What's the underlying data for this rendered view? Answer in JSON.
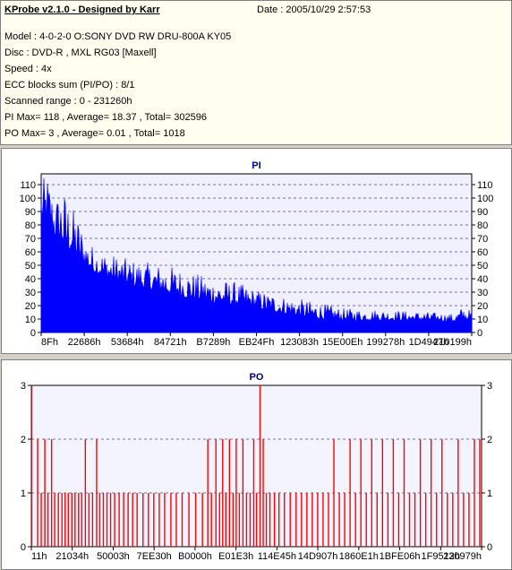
{
  "header": {
    "title": "KProbe v2.1.0 - Designed by Karr",
    "date": "Date : 2005/10/29 2:57:53",
    "lines": [
      "Model : 4-0-2-0 O:SONY    DVD RW DRU-800A  KY05",
      "Disc : DVD-R , MXL RG03 [Maxell]",
      "Speed : 4x",
      "ECC blocks sum (PI/PO) : 8/1",
      "Scanned range : 0 - 231260h",
      "PI Max= 118 , Average= 18.37 , Total= 302596",
      "PO Max= 3 , Average= 0.01 , Total= 1018"
    ]
  },
  "colors": {
    "pi": "#0000ff",
    "po": "#ff0000",
    "plot_bg_pi": "#f0f0ff",
    "plot_bg_po": "#f4f4ff",
    "grid": "#7070a0"
  },
  "chart_data": [
    {
      "type": "area",
      "title": "PI",
      "ylim": [
        0,
        118
      ],
      "yticks": [
        0,
        10,
        20,
        30,
        40,
        50,
        60,
        70,
        80,
        90,
        100,
        110
      ],
      "x_tick_labels": [
        "8Fh",
        "22686h",
        "53684h",
        "84721h",
        "B7289h",
        "EB24Fh",
        "123083h",
        "15E00Eh",
        "199278h",
        "1D4947h",
        "210199h"
      ],
      "grid": "dashed horizontal",
      "x_range_hex": [
        "0h",
        "231260h"
      ],
      "envelope": [
        {
          "x": 0.0,
          "max": 113,
          "base": 80
        },
        {
          "x": 0.015,
          "max": 118,
          "base": 82
        },
        {
          "x": 0.03,
          "max": 100,
          "base": 72
        },
        {
          "x": 0.05,
          "max": 108,
          "base": 65
        },
        {
          "x": 0.07,
          "max": 95,
          "base": 60
        },
        {
          "x": 0.09,
          "max": 85,
          "base": 52
        },
        {
          "x": 0.1,
          "max": 72,
          "base": 50
        },
        {
          "x": 0.12,
          "max": 65,
          "base": 45
        },
        {
          "x": 0.15,
          "max": 60,
          "base": 40
        },
        {
          "x": 0.2,
          "max": 55,
          "base": 35
        },
        {
          "x": 0.25,
          "max": 52,
          "base": 32
        },
        {
          "x": 0.3,
          "max": 50,
          "base": 28
        },
        {
          "x": 0.35,
          "max": 45,
          "base": 25
        },
        {
          "x": 0.4,
          "max": 40,
          "base": 22
        },
        {
          "x": 0.45,
          "max": 38,
          "base": 20
        },
        {
          "x": 0.5,
          "max": 32,
          "base": 18
        },
        {
          "x": 0.55,
          "max": 28,
          "base": 15
        },
        {
          "x": 0.6,
          "max": 25,
          "base": 12
        },
        {
          "x": 0.65,
          "max": 22,
          "base": 10
        },
        {
          "x": 0.7,
          "max": 18,
          "base": 9
        },
        {
          "x": 0.8,
          "max": 17,
          "base": 9
        },
        {
          "x": 0.9,
          "max": 15,
          "base": 9
        },
        {
          "x": 0.96,
          "max": 14,
          "base": 8
        },
        {
          "x": 0.98,
          "max": 20,
          "base": 9
        },
        {
          "x": 1.0,
          "max": 16,
          "base": 9
        }
      ]
    },
    {
      "type": "bar",
      "title": "PO",
      "ylim": [
        0,
        3
      ],
      "yticks": [
        0,
        1,
        2,
        3
      ],
      "x_tick_labels": [
        "11h",
        "21034h",
        "50003h",
        "7EE30h",
        "B0000h",
        "E01E3h",
        "114E45h",
        "14D907h",
        "1860E1h",
        "1BFE06h",
        "1F9512h",
        "230979h"
      ],
      "grid": "dashed horizontal",
      "spikes": [
        {
          "x": 0.001,
          "y": 3
        },
        {
          "x": 0.014,
          "y": 2
        },
        {
          "x": 0.022,
          "y": 1
        },
        {
          "x": 0.03,
          "y": 2
        },
        {
          "x": 0.037,
          "y": 1
        },
        {
          "x": 0.045,
          "y": 2
        },
        {
          "x": 0.052,
          "y": 1
        },
        {
          "x": 0.06,
          "y": 1
        },
        {
          "x": 0.068,
          "y": 1
        },
        {
          "x": 0.075,
          "y": 1
        },
        {
          "x": 0.082,
          "y": 1
        },
        {
          "x": 0.09,
          "y": 1
        },
        {
          "x": 0.097,
          "y": 1
        },
        {
          "x": 0.105,
          "y": 1
        },
        {
          "x": 0.112,
          "y": 1
        },
        {
          "x": 0.12,
          "y": 2
        },
        {
          "x": 0.128,
          "y": 1
        },
        {
          "x": 0.136,
          "y": 1
        },
        {
          "x": 0.145,
          "y": 2
        },
        {
          "x": 0.152,
          "y": 1
        },
        {
          "x": 0.16,
          "y": 1
        },
        {
          "x": 0.168,
          "y": 1
        },
        {
          "x": 0.176,
          "y": 1
        },
        {
          "x": 0.185,
          "y": 1
        },
        {
          "x": 0.195,
          "y": 1
        },
        {
          "x": 0.205,
          "y": 1
        },
        {
          "x": 0.215,
          "y": 1
        },
        {
          "x": 0.225,
          "y": 1
        },
        {
          "x": 0.235,
          "y": 1
        },
        {
          "x": 0.248,
          "y": 1
        },
        {
          "x": 0.26,
          "y": 1
        },
        {
          "x": 0.272,
          "y": 1
        },
        {
          "x": 0.284,
          "y": 1
        },
        {
          "x": 0.296,
          "y": 1
        },
        {
          "x": 0.31,
          "y": 1
        },
        {
          "x": 0.322,
          "y": 1
        },
        {
          "x": 0.335,
          "y": 1
        },
        {
          "x": 0.35,
          "y": 1
        },
        {
          "x": 0.365,
          "y": 1
        },
        {
          "x": 0.38,
          "y": 1
        },
        {
          "x": 0.392,
          "y": 2
        },
        {
          "x": 0.4,
          "y": 1
        },
        {
          "x": 0.41,
          "y": 2
        },
        {
          "x": 0.418,
          "y": 1
        },
        {
          "x": 0.425,
          "y": 2
        },
        {
          "x": 0.432,
          "y": 1
        },
        {
          "x": 0.44,
          "y": 2
        },
        {
          "x": 0.448,
          "y": 1
        },
        {
          "x": 0.455,
          "y": 2
        },
        {
          "x": 0.462,
          "y": 1
        },
        {
          "x": 0.47,
          "y": 2
        },
        {
          "x": 0.478,
          "y": 1
        },
        {
          "x": 0.486,
          "y": 1
        },
        {
          "x": 0.494,
          "y": 2
        },
        {
          "x": 0.5,
          "y": 1
        },
        {
          "x": 0.508,
          "y": 3
        },
        {
          "x": 0.515,
          "y": 2
        },
        {
          "x": 0.522,
          "y": 1
        },
        {
          "x": 0.53,
          "y": 1
        },
        {
          "x": 0.54,
          "y": 1
        },
        {
          "x": 0.55,
          "y": 1
        },
        {
          "x": 0.562,
          "y": 1
        },
        {
          "x": 0.575,
          "y": 1
        },
        {
          "x": 0.588,
          "y": 1
        },
        {
          "x": 0.6,
          "y": 1
        },
        {
          "x": 0.612,
          "y": 1
        },
        {
          "x": 0.624,
          "y": 1
        },
        {
          "x": 0.636,
          "y": 1
        },
        {
          "x": 0.648,
          "y": 1
        },
        {
          "x": 0.66,
          "y": 1
        },
        {
          "x": 0.672,
          "y": 2
        },
        {
          "x": 0.684,
          "y": 1
        },
        {
          "x": 0.696,
          "y": 1
        },
        {
          "x": 0.708,
          "y": 2
        },
        {
          "x": 0.72,
          "y": 1
        },
        {
          "x": 0.732,
          "y": 2
        },
        {
          "x": 0.744,
          "y": 1
        },
        {
          "x": 0.756,
          "y": 2
        },
        {
          "x": 0.768,
          "y": 1
        },
        {
          "x": 0.78,
          "y": 2
        },
        {
          "x": 0.792,
          "y": 1
        },
        {
          "x": 0.804,
          "y": 2
        },
        {
          "x": 0.816,
          "y": 1
        },
        {
          "x": 0.828,
          "y": 2
        },
        {
          "x": 0.84,
          "y": 1
        },
        {
          "x": 0.852,
          "y": 1
        },
        {
          "x": 0.864,
          "y": 2
        },
        {
          "x": 0.876,
          "y": 1
        },
        {
          "x": 0.888,
          "y": 2
        },
        {
          "x": 0.9,
          "y": 1
        },
        {
          "x": 0.912,
          "y": 2
        },
        {
          "x": 0.924,
          "y": 1
        },
        {
          "x": 0.936,
          "y": 1
        },
        {
          "x": 0.948,
          "y": 2
        },
        {
          "x": 0.96,
          "y": 1
        },
        {
          "x": 0.972,
          "y": 1
        },
        {
          "x": 0.984,
          "y": 2
        },
        {
          "x": 0.996,
          "y": 2
        }
      ]
    }
  ]
}
